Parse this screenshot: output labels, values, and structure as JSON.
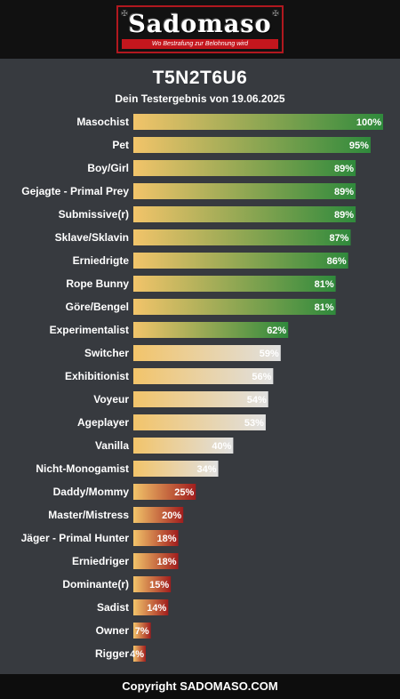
{
  "header": {
    "logo_text": "Sadomaso",
    "logo_tagline": "Wo Bestrafung zur Belohnung wird",
    "logo_corner_glyph": "✠"
  },
  "title": "T5N2T6U6",
  "subtitle": "Dein Testergebnis von 19.06.2025",
  "footer": {
    "copyright": "Copyright SADOMASO.COM"
  },
  "colors": {
    "background": "#373a3f",
    "header": "#111111",
    "bar_start": "#f2c46a",
    "bar_high_end": "#2f8a3c",
    "bar_mid_end": "#e0e0e0",
    "bar_low_end": "#a11d1d"
  },
  "chart_data": {
    "type": "bar",
    "orientation": "horizontal",
    "xlim": [
      0,
      100
    ],
    "value_suffix": "%",
    "grid": false,
    "legend": "none",
    "categories": [
      "Masochist",
      "Pet",
      "Boy/Girl",
      "Gejagte - Primal Prey",
      "Submissive(r)",
      "Sklave/Sklavin",
      "Erniedrigte",
      "Rope Bunny",
      "Göre/Bengel",
      "Experimentalist",
      "Switcher",
      "Exhibitionist",
      "Voyeur",
      "Ageplayer",
      "Vanilla",
      "Nicht-Monogamist",
      "Daddy/Mommy",
      "Master/Mistress",
      "Jäger - Primal Hunter",
      "Erniedriger",
      "Dominante(r)",
      "Sadist",
      "Owner",
      "Rigger"
    ],
    "values": [
      100,
      95,
      89,
      89,
      89,
      87,
      86,
      81,
      81,
      62,
      59,
      56,
      54,
      53,
      40,
      34,
      25,
      20,
      18,
      18,
      15,
      14,
      7,
      4
    ]
  }
}
